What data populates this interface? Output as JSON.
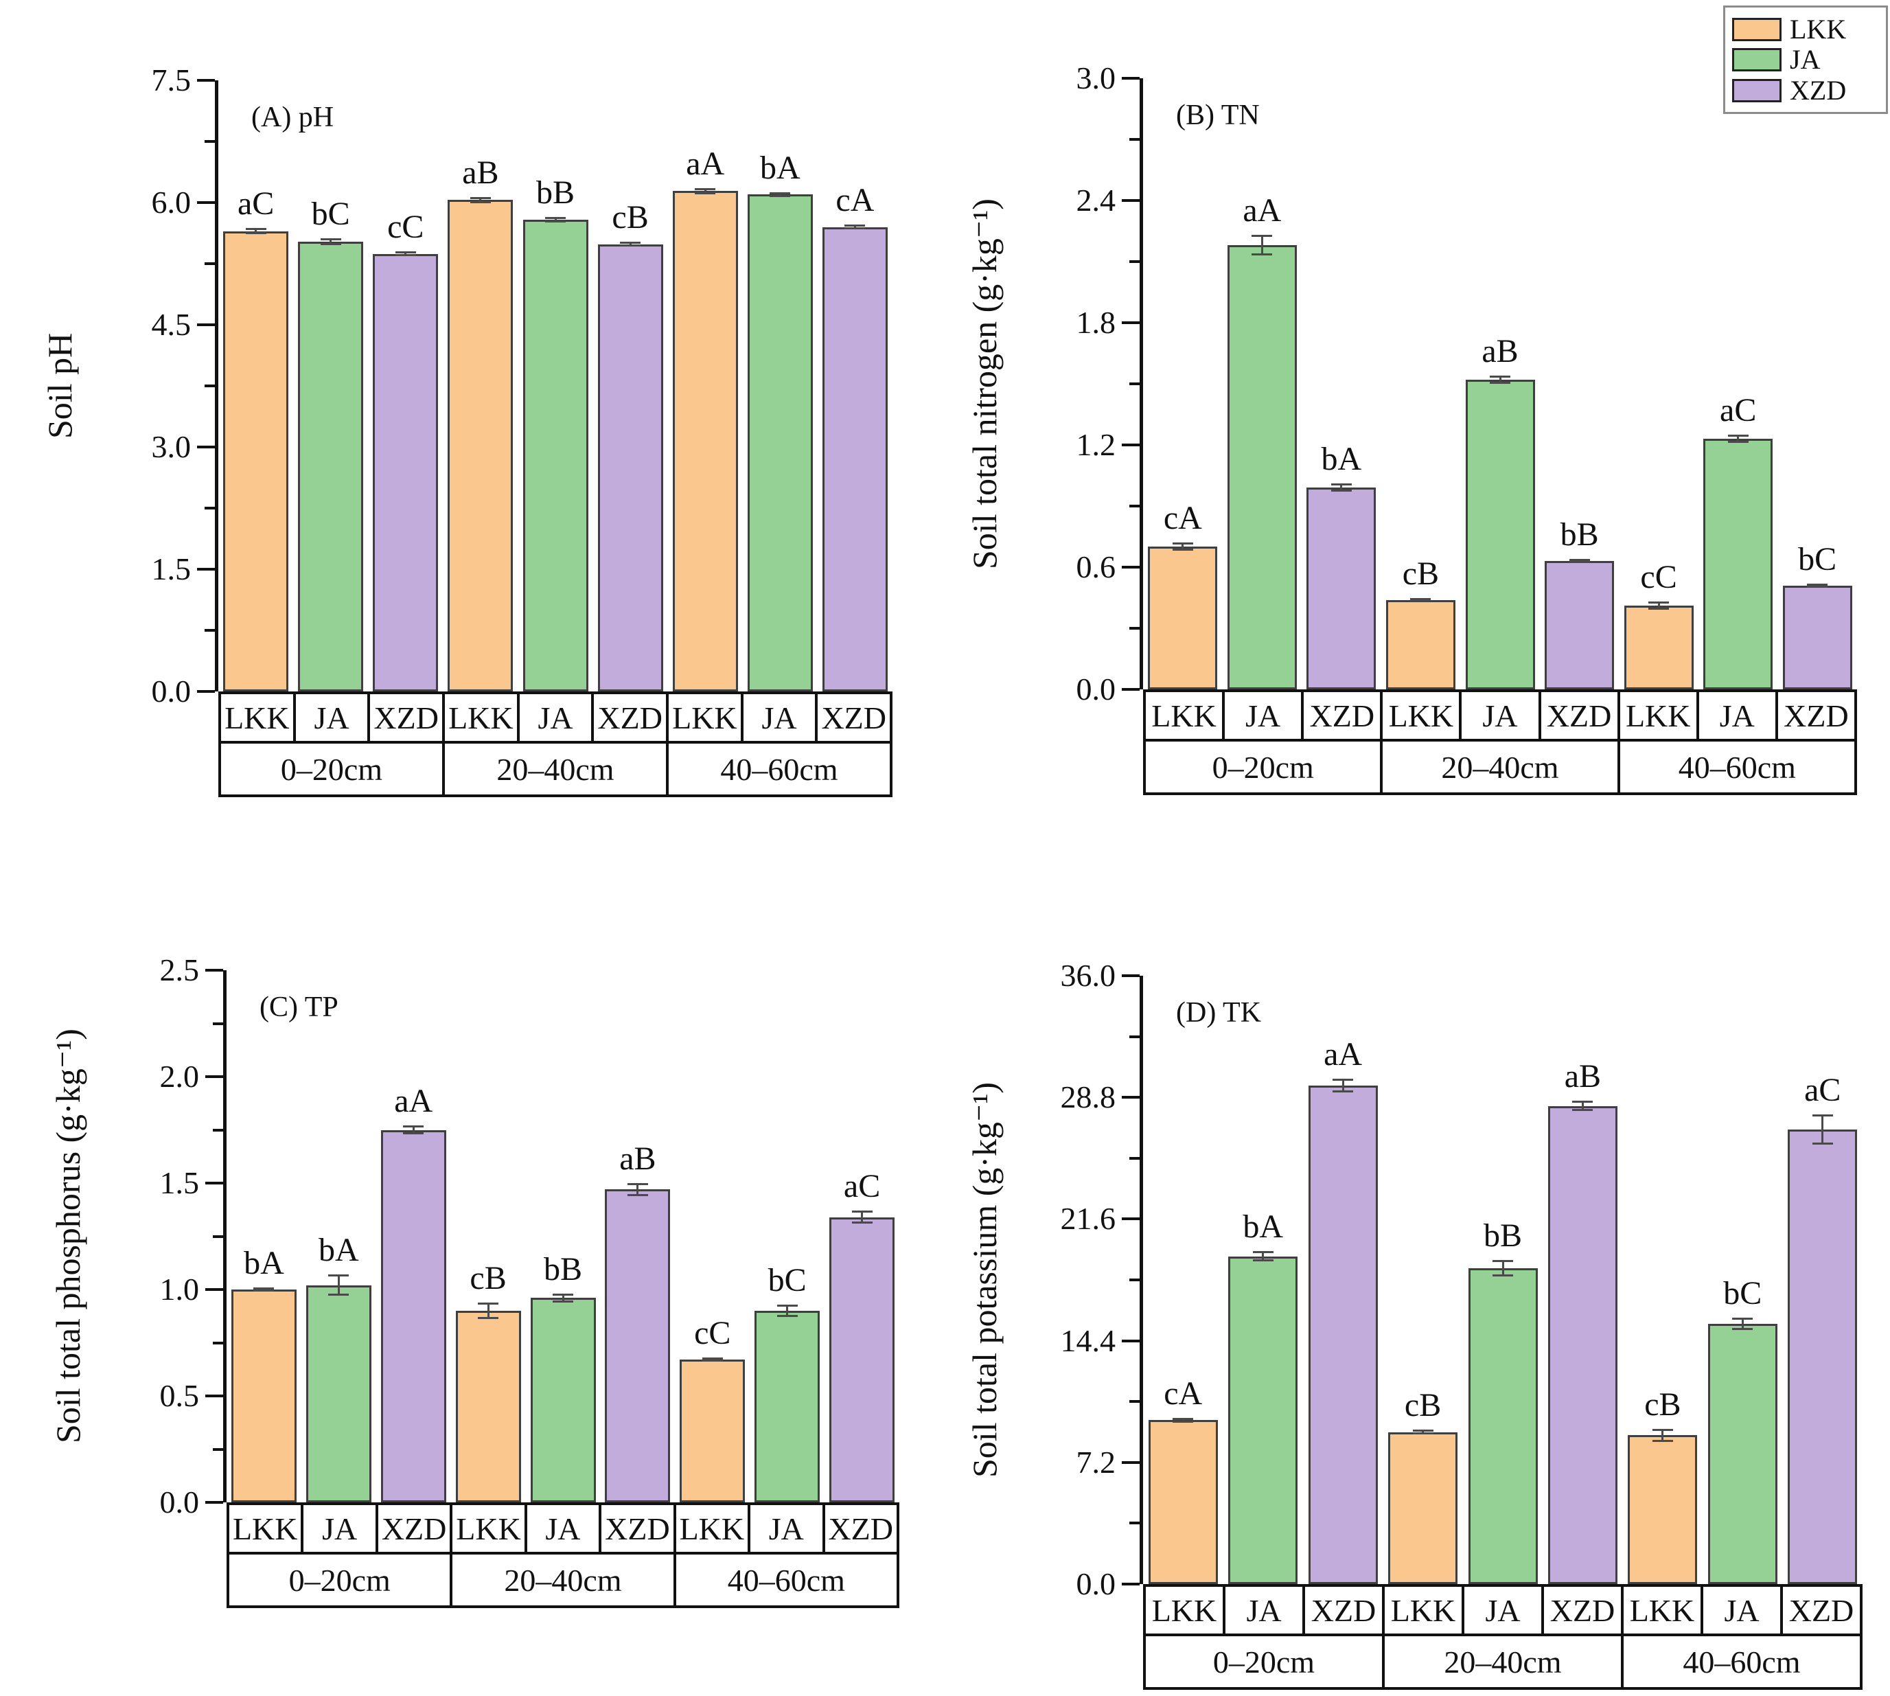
{
  "figure": {
    "background": "#ffffff"
  },
  "colors": {
    "bar_edge": "#3f3f3f",
    "axis": "#111111",
    "error_bar": "#4a4a4a",
    "legend_border": "#8c8c8c"
  },
  "legend": {
    "position": "top-right",
    "items": [
      {
        "label": "LKK",
        "color": "#FAC78F"
      },
      {
        "label": "JA",
        "color": "#95D195"
      },
      {
        "label": "XZD",
        "color": "#C1ACDB"
      }
    ]
  },
  "x_axis": {
    "treatments": [
      "LKK",
      "JA",
      "XZD"
    ],
    "depths": [
      "0–20cm",
      "20–40cm",
      "40–60cm"
    ]
  },
  "chart_data": [
    {
      "id": "A",
      "type": "bar",
      "panel_label": "(A) pH",
      "ylabel": "Soil pH",
      "ylim": [
        0,
        7.5
      ],
      "ytick_labels": [
        "0.0",
        "1.5",
        "3.0",
        "4.5",
        "6.0",
        "7.5"
      ],
      "grid": false,
      "categories": [
        "0–20cm",
        "20–40cm",
        "40–60cm"
      ],
      "series": [
        {
          "name": "LKK",
          "color": "#FAC78F",
          "values": [
            5.65,
            6.03,
            6.14
          ],
          "errors": [
            0.04,
            0.04,
            0.04
          ],
          "sig": [
            "aC",
            "aB",
            "aA"
          ]
        },
        {
          "name": "JA",
          "color": "#95D195",
          "values": [
            5.52,
            5.79,
            6.1
          ],
          "errors": [
            0.04,
            0.03,
            0.03
          ],
          "sig": [
            "bC",
            "bB",
            "bA"
          ]
        },
        {
          "name": "XZD",
          "color": "#C1ACDB",
          "values": [
            5.37,
            5.49,
            5.7
          ],
          "errors": [
            0.03,
            0.03,
            0.03
          ],
          "sig": [
            "cC",
            "cB",
            "cA"
          ]
        }
      ]
    },
    {
      "id": "B",
      "type": "bar",
      "panel_label": "(B) TN",
      "ylabel": "Soil total nitrogen (g·kg⁻¹)",
      "ylim": [
        0,
        3.0
      ],
      "ytick_labels": [
        "0.0",
        "0.6",
        "1.2",
        "1.8",
        "2.4",
        "3.0"
      ],
      "grid": false,
      "categories": [
        "0–20cm",
        "20–40cm",
        "40–60cm"
      ],
      "series": [
        {
          "name": "LKK",
          "color": "#FAC78F",
          "values": [
            0.7,
            0.44,
            0.41
          ],
          "errors": [
            0.02,
            0.01,
            0.02
          ],
          "sig": [
            "cA",
            "cB",
            "cC"
          ]
        },
        {
          "name": "JA",
          "color": "#95D195",
          "values": [
            2.18,
            1.52,
            1.23
          ],
          "errors": [
            0.05,
            0.02,
            0.02
          ],
          "sig": [
            "aA",
            "aB",
            "aC"
          ]
        },
        {
          "name": "XZD",
          "color": "#C1ACDB",
          "values": [
            0.99,
            0.63,
            0.51
          ],
          "errors": [
            0.02,
            0.01,
            0.01
          ],
          "sig": [
            "bA",
            "bB",
            "bC"
          ]
        }
      ]
    },
    {
      "id": "C",
      "type": "bar",
      "panel_label": "(C) TP",
      "ylabel": "Soil total phosphorus (g·kg⁻¹)",
      "ylim": [
        0,
        2.5
      ],
      "ytick_labels": [
        "0.0",
        "0.5",
        "1.0",
        "1.5",
        "2.0",
        "2.5"
      ],
      "grid": false,
      "categories": [
        "0–20cm",
        "20–40cm",
        "40–60cm"
      ],
      "series": [
        {
          "name": "LKK",
          "color": "#FAC78F",
          "values": [
            1.0,
            0.9,
            0.67
          ],
          "errors": [
            0.01,
            0.04,
            0.01
          ],
          "sig": [
            "bA",
            "cB",
            "cC"
          ]
        },
        {
          "name": "JA",
          "color": "#95D195",
          "values": [
            1.02,
            0.96,
            0.9
          ],
          "errors": [
            0.05,
            0.02,
            0.03
          ],
          "sig": [
            "bA",
            "bB",
            "bC"
          ]
        },
        {
          "name": "XZD",
          "color": "#C1ACDB",
          "values": [
            1.75,
            1.47,
            1.34
          ],
          "errors": [
            0.02,
            0.03,
            0.03
          ],
          "sig": [
            "aA",
            "aB",
            "aC"
          ]
        }
      ]
    },
    {
      "id": "D",
      "type": "bar",
      "panel_label": "(D) TK",
      "ylabel": "Soil total potassium (g·kg⁻¹)",
      "ylim": [
        0,
        36.0
      ],
      "ytick_labels": [
        "0.0",
        "7.2",
        "14.4",
        "21.6",
        "28.8",
        "36.0"
      ],
      "grid": false,
      "categories": [
        "0–20cm",
        "20–40cm",
        "40–60cm"
      ],
      "series": [
        {
          "name": "LKK",
          "color": "#FAC78F",
          "values": [
            9.7,
            9.0,
            8.8
          ],
          "errors": [
            0.15,
            0.15,
            0.4
          ],
          "sig": [
            "cA",
            "cB",
            "cB"
          ]
        },
        {
          "name": "JA",
          "color": "#95D195",
          "values": [
            19.4,
            18.7,
            15.4
          ],
          "errors": [
            0.3,
            0.5,
            0.35
          ],
          "sig": [
            "bA",
            "bB",
            "bC"
          ]
        },
        {
          "name": "XZD",
          "color": "#C1ACDB",
          "values": [
            29.5,
            28.3,
            26.9
          ],
          "errors": [
            0.4,
            0.3,
            0.9
          ],
          "sig": [
            "aA",
            "aB",
            "aC"
          ]
        }
      ]
    }
  ]
}
